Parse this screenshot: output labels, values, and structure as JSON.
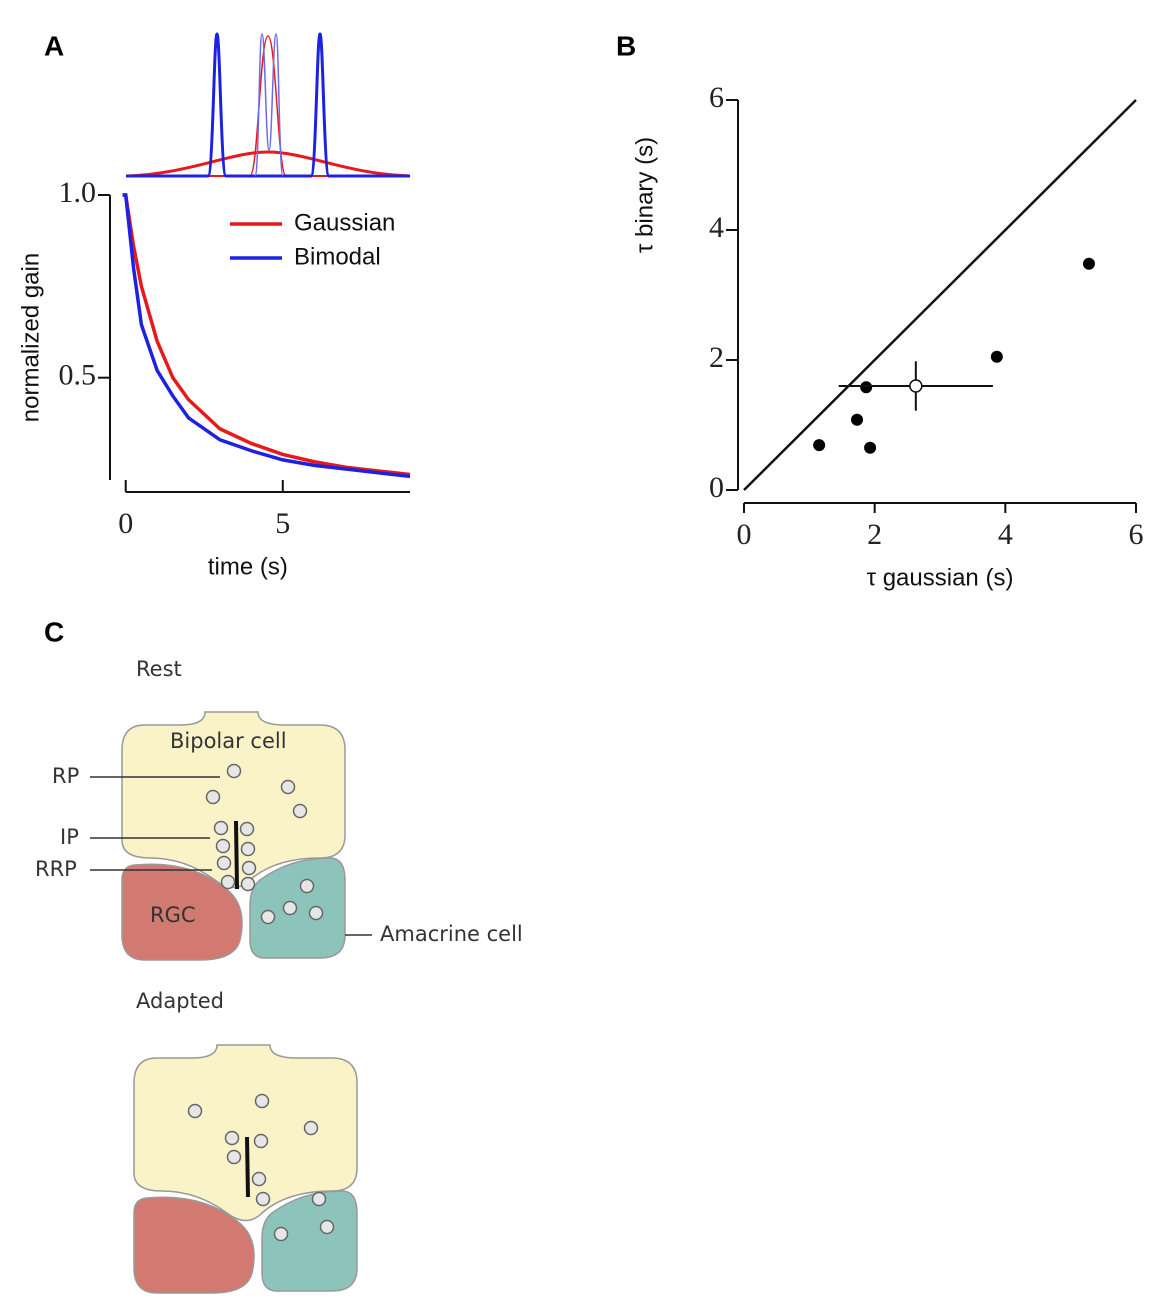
{
  "panel_labels": [
    "A",
    "B",
    "C"
  ],
  "chart_data": [
    {
      "type": "line",
      "xlabel": "time (s)",
      "ylabel": "normalized gain",
      "x": [
        -0.1,
        0,
        0.25,
        0.5,
        1,
        1.5,
        2,
        3,
        4,
        5,
        6,
        7,
        8,
        9.05
      ],
      "series": [
        {
          "name": "Gaussian",
          "color": "#e8191c",
          "values": [
            1.0,
            1.0,
            0.86,
            0.75,
            0.6,
            0.5,
            0.44,
            0.36,
            0.32,
            0.29,
            0.27,
            0.255,
            0.245,
            0.235
          ]
        },
        {
          "name": "Bimodal",
          "color": "#1d22e0",
          "values": [
            1.0,
            1.0,
            0.8,
            0.645,
            0.52,
            0.45,
            0.39,
            0.33,
            0.3,
            0.275,
            0.26,
            0.25,
            0.24,
            0.23
          ]
        }
      ],
      "xlim": [
        -0.5,
        9.05
      ],
      "ylim": [
        0.22,
        1.0
      ],
      "xticks": [
        0,
        5
      ],
      "yticks": [
        {
          "value": 1.0,
          "label": "1.0"
        },
        0.5
      ],
      "legend": "upper right"
    },
    {
      "type": "scatter",
      "xlabel": "τ gaussian (s)",
      "ylabel": "τ binary (s)",
      "xlabel_color": "#e8191c",
      "ylabel_color": "#2a2ad0",
      "color": "#000000",
      "x": [
        1.15,
        1.73,
        1.87,
        1.93,
        3.87,
        5.28
      ],
      "values": [
        0.69,
        1.08,
        1.58,
        0.65,
        2.05,
        3.48
      ],
      "mean": {
        "x": 2.63,
        "y": 1.6,
        "xerr": 1.18,
        "yerr": 0.38
      },
      "xlim": [
        0,
        6
      ],
      "ylim": [
        0,
        6
      ],
      "xticks": [
        0,
        2,
        4,
        6
      ],
      "yticks": [
        0,
        2,
        4,
        6
      ]
    }
  ],
  "diagram": {
    "states": [
      {
        "title": "Rest"
      },
      {
        "title": "Adapted"
      }
    ],
    "labels": {
      "bipolar": "Bipolar cell",
      "rp": "RP",
      "ip": "IP",
      "rrp": "RRP",
      "rgc": "RGC",
      "amacrine": "Amacrine cell"
    }
  }
}
